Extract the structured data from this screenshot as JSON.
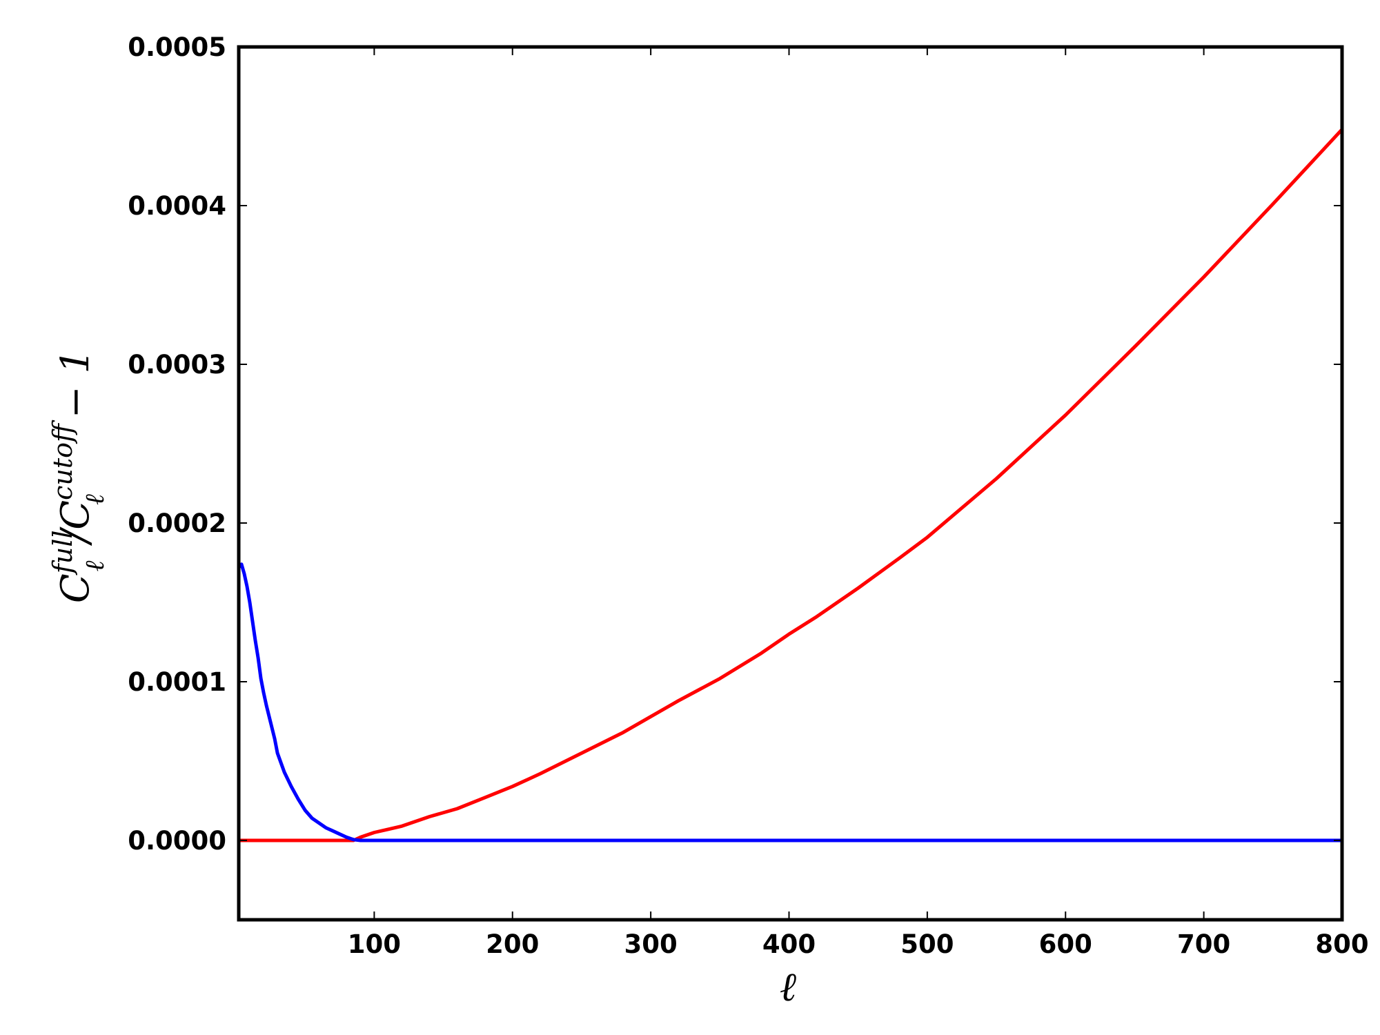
{
  "chart_data": {
    "type": "line",
    "title": "",
    "xlabel": "ℓ",
    "ylabel": {
      "base": "C",
      "sub": "ℓ",
      "sup_full": "full",
      "slash": "/",
      "sup_cut": "cutoff",
      "tail": "− 1"
    },
    "xlim": [
      2,
      800
    ],
    "ylim": [
      -5e-05,
      0.0005
    ],
    "xticks": [
      100,
      200,
      300,
      400,
      500,
      600,
      700,
      800
    ],
    "xtick_labels": [
      "100",
      "200",
      "300",
      "400",
      "500",
      "600",
      "700",
      "800"
    ],
    "yticks": [
      0.0,
      0.0001,
      0.0002,
      0.0003,
      0.0004,
      0.0005
    ],
    "ytick_labels": [
      "0.0000",
      "0.0001",
      "0.0002",
      "0.0003",
      "0.0004",
      "0.0005"
    ],
    "grid": false,
    "legend": "none",
    "series": [
      {
        "color": "#ff0000",
        "x": [
          2,
          20,
          40,
          60,
          80,
          85,
          90,
          100,
          110,
          120,
          140,
          160,
          180,
          200,
          220,
          250,
          280,
          300,
          320,
          350,
          380,
          400,
          420,
          450,
          480,
          500,
          550,
          600,
          650,
          700,
          750,
          800
        ],
        "y": [
          0,
          0,
          0,
          0,
          0,
          0,
          2e-06,
          5e-06,
          7e-06,
          9e-06,
          1.5e-05,
          2e-05,
          2.7e-05,
          3.4e-05,
          4.2e-05,
          5.5e-05,
          6.8e-05,
          7.8e-05,
          8.8e-05,
          0.000102,
          0.000118,
          0.00013,
          0.000141,
          0.000159,
          0.000178,
          0.000191,
          0.000228,
          0.000268,
          0.000311,
          0.000355,
          0.000401,
          0.000448
        ]
      },
      {
        "color": "#0000ff",
        "x": [
          2,
          4,
          6,
          8,
          10,
          12,
          14,
          16,
          18,
          20,
          22,
          24,
          26,
          28,
          30,
          35,
          40,
          45,
          50,
          55,
          60,
          65,
          70,
          75,
          80,
          85,
          90,
          100,
          200,
          300,
          400,
          500,
          600,
          700,
          800
        ],
        "y": [
          0.000172,
          0.000174,
          0.000168,
          0.00016,
          0.00015,
          0.000138,
          0.000126,
          0.000115,
          0.000102,
          9.3e-05,
          8.5e-05,
          7.8e-05,
          7.1e-05,
          6.4e-05,
          5.5e-05,
          4.3e-05,
          3.4e-05,
          2.6e-05,
          1.9e-05,
          1.4e-05,
          1.1e-05,
          8e-06,
          6e-06,
          4e-06,
          2e-06,
          5e-07,
          0,
          0,
          0,
          0,
          0,
          0,
          0,
          0,
          0
        ]
      }
    ]
  }
}
